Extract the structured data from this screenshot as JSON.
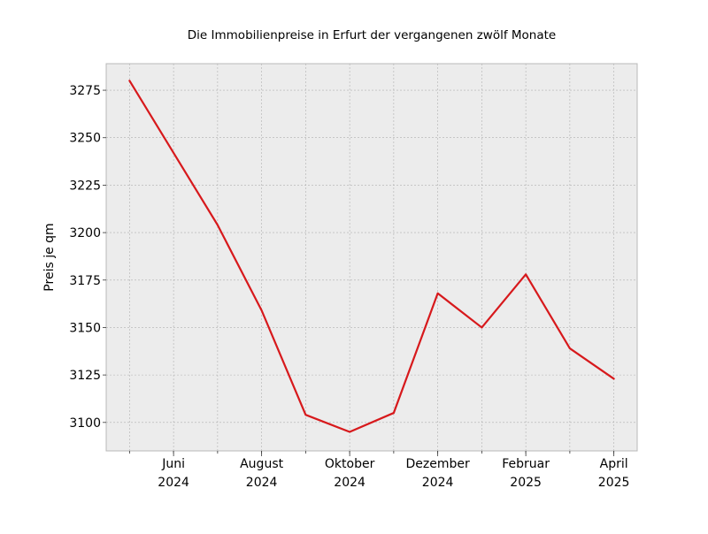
{
  "chart_data": {
    "type": "line",
    "title": "Die Immobilienpreise in Erfurt der vergangenen zwölf Monate",
    "xlabel": "",
    "ylabel": "Preis je qm",
    "x": [
      "2024-05",
      "2024-06",
      "2024-07",
      "2024-08",
      "2024-09",
      "2024-10",
      "2024-11",
      "2024-12",
      "2025-01",
      "2025-02",
      "2025-03",
      "2025-04"
    ],
    "series": [
      {
        "values": [
          3280,
          3242,
          3204,
          3159,
          3104,
          3095,
          3105,
          3168,
          3150,
          3178,
          3139,
          3123
        ]
      }
    ],
    "ylim": [
      3085,
      3289
    ],
    "yticks": [
      3100,
      3125,
      3150,
      3175,
      3200,
      3225,
      3250,
      3275
    ],
    "xtick_labels": [
      {
        "x": "2024-06",
        "line1": "Juni",
        "line2": "2024"
      },
      {
        "x": "2024-08",
        "line1": "August",
        "line2": "2024"
      },
      {
        "x": "2024-10",
        "line1": "Oktober",
        "line2": "2024"
      },
      {
        "x": "2024-12",
        "line1": "Dezember",
        "line2": "2024"
      },
      {
        "x": "2025-02",
        "line1": "Februar",
        "line2": "2025"
      },
      {
        "x": "2025-04",
        "line1": "April",
        "line2": "2025"
      }
    ],
    "grid": true,
    "colors": {
      "line": "#d7191c",
      "plot_background": "#ececec",
      "grid": "#b0b0b0",
      "spine": "#b8b8b8"
    }
  }
}
